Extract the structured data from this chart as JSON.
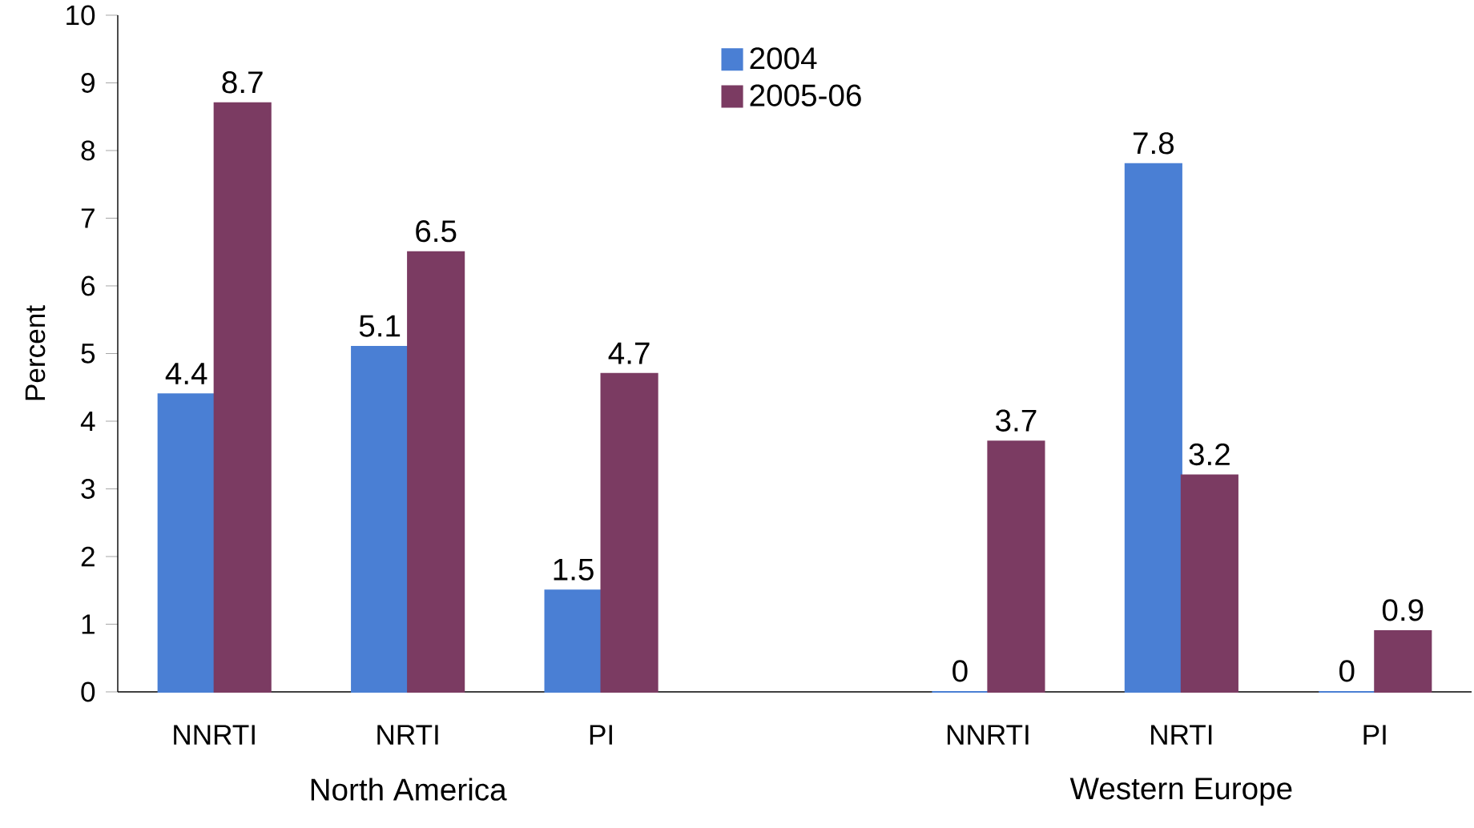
{
  "chart_data": {
    "type": "bar",
    "ylabel": "Percent",
    "categories": [
      "NNRTI",
      "NRTI",
      "PI",
      null,
      "NNRTI",
      "NRTI",
      "PI"
    ],
    "series": [
      {
        "name": "2004",
        "color": "#4a7fd4",
        "values": [
          4.4,
          5.1,
          1.5,
          null,
          0,
          7.8,
          0
        ]
      },
      {
        "name": "2005-06",
        "color": "#7b3b62",
        "values": [
          8.7,
          6.5,
          4.7,
          null,
          3.7,
          3.2,
          0.9
        ]
      }
    ],
    "ylim": [
      0,
      10
    ],
    "yticks": [
      0,
      1,
      2,
      3,
      4,
      5,
      6,
      7,
      8,
      9,
      10
    ],
    "data_labels": true,
    "legend": "top",
    "grid": false,
    "annotations": [
      "North America",
      "Western Europe"
    ]
  }
}
